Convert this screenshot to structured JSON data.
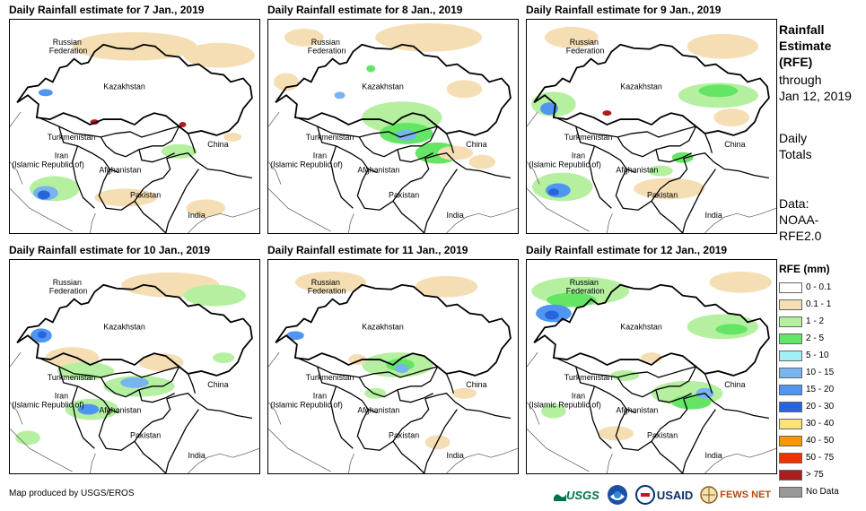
{
  "panels": [
    {
      "title": "Daily Rainfall estimate for 7 Jan., 2019"
    },
    {
      "title": "Daily Rainfall estimate for 8 Jan., 2019"
    },
    {
      "title": "Daily Rainfall estimate for 9 Jan., 2019"
    },
    {
      "title": "Daily Rainfall estimate for 10 Jan., 2019"
    },
    {
      "title": "Daily Rainfall estimate for 11 Jan., 2019"
    },
    {
      "title": "Daily Rainfall estimate for 12 Jan., 2019"
    }
  ],
  "map_labels": {
    "russia_1": "Russian",
    "russia_2": "Federation",
    "kazakhstan": "Kazakhstan",
    "turkmenistan": "Turkmenistan",
    "iran_1": "Iran",
    "iran_2": "(Islamic Republic of)",
    "afghanistan": "Afghanistan",
    "pakistan": "Pakistan",
    "china": "China",
    "india": "India"
  },
  "side": {
    "heading_1": "Rainfall",
    "heading_2": "Estimate",
    "heading_3": "(RFE)",
    "through": "through",
    "date": "Jan 12, 2019",
    "daily_1": "Daily",
    "daily_2": "Totals",
    "data_1": "Data:",
    "data_2": "NOAA-",
    "data_3": "RFE2.0"
  },
  "legend": {
    "title": "RFE (mm)",
    "items": [
      {
        "label": "0 - 0.1",
        "color": "#ffffff"
      },
      {
        "label": "0.1 - 1",
        "color": "#f5deb3"
      },
      {
        "label": "1 - 2",
        "color": "#b4f0a0"
      },
      {
        "label": "2 - 5",
        "color": "#64e664"
      },
      {
        "label": "5 - 10",
        "color": "#a0f0f5"
      },
      {
        "label": "10 - 15",
        "color": "#78b4f0"
      },
      {
        "label": "15 - 20",
        "color": "#5096f0"
      },
      {
        "label": "20 - 30",
        "color": "#2864dc"
      },
      {
        "label": "30 - 40",
        "color": "#fae178"
      },
      {
        "label": "40 - 50",
        "color": "#fa9600"
      },
      {
        "label": "50 - 75",
        "color": "#f03200"
      },
      {
        "label": "> 75",
        "color": "#aa1e1e"
      },
      {
        "label": "No Data",
        "color": "#999999"
      }
    ]
  },
  "credit": "Map produced by USGS/EROS",
  "logos": {
    "usgs": "USGS",
    "usaid": "USAID",
    "fewsnet": "FEWS NET"
  }
}
